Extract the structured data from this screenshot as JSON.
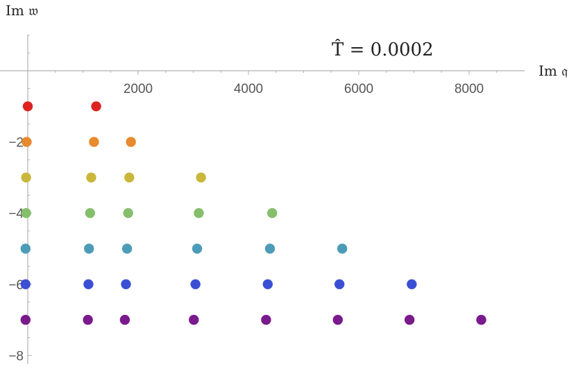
{
  "chart_data": {
    "type": "scatter",
    "title": "",
    "annotation": "T̂ = 0.0002",
    "xlabel": "Im 𝔮",
    "ylabel": "Im 𝔴",
    "xlim": [
      0,
      9000
    ],
    "ylim": [
      -8,
      1
    ],
    "grid": false,
    "x_ticks": [
      2000,
      4000,
      6000,
      8000
    ],
    "x_tick_labels": [
      "2000",
      "4000",
      "6000",
      "8000"
    ],
    "y_ticks": [
      -8,
      -6,
      -4,
      -2
    ],
    "y_tick_labels": [
      "−8",
      "−6",
      "−4",
      "−2"
    ],
    "series": [
      {
        "color": "#dd2222",
        "points": [
          {
            "x": 0,
            "y": -1
          },
          {
            "x": 1240,
            "y": -1
          }
        ]
      },
      {
        "color": "#e88a2e",
        "points": [
          {
            "x": -20,
            "y": -2
          },
          {
            "x": 1200,
            "y": -2
          },
          {
            "x": 1870,
            "y": -2
          }
        ]
      },
      {
        "color": "#c9b83c",
        "points": [
          {
            "x": -30,
            "y": -3
          },
          {
            "x": 1150,
            "y": -3
          },
          {
            "x": 1840,
            "y": -3
          },
          {
            "x": 3140,
            "y": -3
          }
        ]
      },
      {
        "color": "#85bf6b",
        "points": [
          {
            "x": -30,
            "y": -4
          },
          {
            "x": 1130,
            "y": -4
          },
          {
            "x": 1820,
            "y": -4
          },
          {
            "x": 3100,
            "y": -4
          },
          {
            "x": 4430,
            "y": -4
          }
        ]
      },
      {
        "color": "#4c9cb8",
        "points": [
          {
            "x": -40,
            "y": -5
          },
          {
            "x": 1110,
            "y": -5
          },
          {
            "x": 1800,
            "y": -5
          },
          {
            "x": 3070,
            "y": -5
          },
          {
            "x": 4390,
            "y": -5
          },
          {
            "x": 5700,
            "y": -5
          }
        ]
      },
      {
        "color": "#3b4fd4",
        "points": [
          {
            "x": -40,
            "y": -6
          },
          {
            "x": 1100,
            "y": -6
          },
          {
            "x": 1780,
            "y": -6
          },
          {
            "x": 3040,
            "y": -6
          },
          {
            "x": 4350,
            "y": -6
          },
          {
            "x": 5650,
            "y": -6
          },
          {
            "x": 6960,
            "y": -6
          }
        ]
      },
      {
        "color": "#7a1a8c",
        "points": [
          {
            "x": -40,
            "y": -7
          },
          {
            "x": 1090,
            "y": -7
          },
          {
            "x": 1760,
            "y": -7
          },
          {
            "x": 3010,
            "y": -7
          },
          {
            "x": 4320,
            "y": -7
          },
          {
            "x": 5620,
            "y": -7
          },
          {
            "x": 6920,
            "y": -7
          },
          {
            "x": 8220,
            "y": -7
          }
        ]
      }
    ]
  }
}
